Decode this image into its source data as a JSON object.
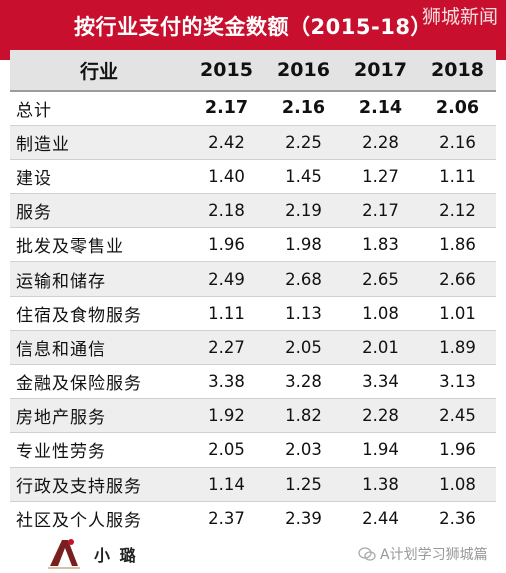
{
  "title": "按行业支付的奖金数额（2015-18）",
  "watermark": "狮城新闻",
  "columns": [
    "行业",
    "2015",
    "2016",
    "2017",
    "2018"
  ],
  "rows": [
    {
      "label": "总计",
      "values": [
        "2.17",
        "2.16",
        "2.14",
        "2.06"
      ]
    },
    {
      "label": "制造业",
      "values": [
        "2.42",
        "2.25",
        "2.28",
        "2.16"
      ]
    },
    {
      "label": "建设",
      "values": [
        "1.40",
        "1.45",
        "1.27",
        "1.11"
      ]
    },
    {
      "label": "服务",
      "values": [
        "2.18",
        "2.19",
        "2.17",
        "2.12"
      ]
    },
    {
      "label": "批发及零售业",
      "values": [
        "1.96",
        "1.98",
        "1.83",
        "1.86"
      ]
    },
    {
      "label": "运输和储存",
      "values": [
        "2.49",
        "2.68",
        "2.65",
        "2.66"
      ]
    },
    {
      "label": "住宿及食物服务",
      "values": [
        "1.11",
        "1.13",
        "1.08",
        "1.01"
      ]
    },
    {
      "label": "信息和通信",
      "values": [
        "2.27",
        "2.05",
        "2.01",
        "1.89"
      ]
    },
    {
      "label": "金融及保险服务",
      "values": [
        "3.38",
        "3.28",
        "3.34",
        "3.13"
      ]
    },
    {
      "label": "房地产服务",
      "values": [
        "1.92",
        "1.82",
        "2.28",
        "2.45"
      ]
    },
    {
      "label": "专业性劳务",
      "values": [
        "2.05",
        "2.03",
        "1.94",
        "1.96"
      ]
    },
    {
      "label": "行政及支持服务",
      "values": [
        "1.14",
        "1.25",
        "1.38",
        "1.08"
      ]
    },
    {
      "label": "社区及个人服务",
      "values": [
        "2.37",
        "2.39",
        "2.44",
        "2.36"
      ]
    }
  ],
  "footer": {
    "name": "小 璐",
    "source": "A计划学习狮城篇"
  },
  "colors": {
    "title_bg": "#c8102e",
    "header_bg": "#e3e3e3",
    "stripe_bg": "#eeeeee"
  }
}
